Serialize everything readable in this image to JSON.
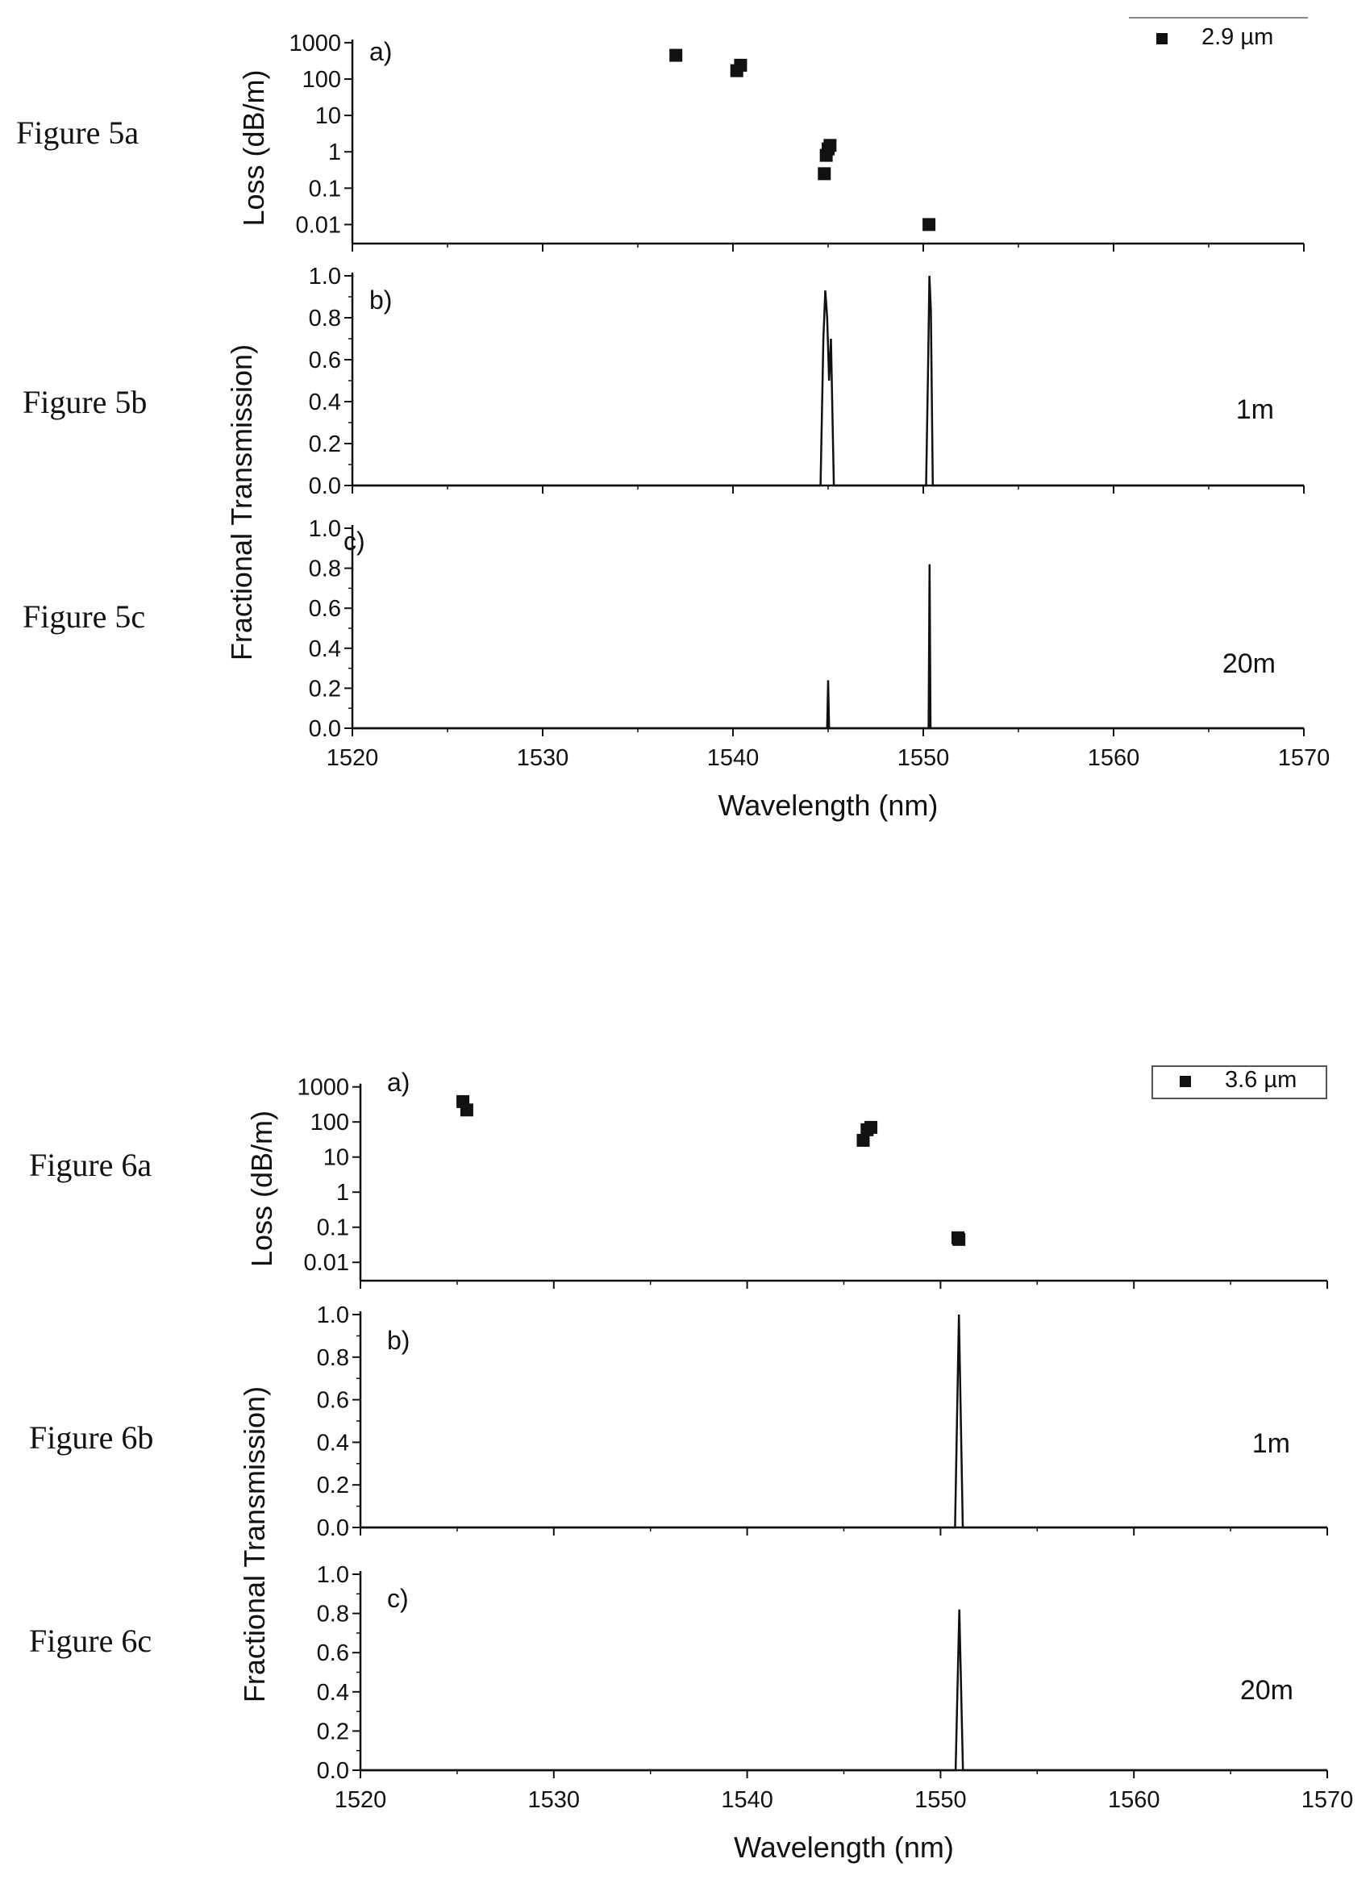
{
  "chart_data": [
    {
      "type": "scatter",
      "figure_label": "Figure 5a",
      "panel": "a)",
      "ylabel": "Loss (dB/m)",
      "yscale": "log",
      "ylim": [
        0.003,
        1500
      ],
      "xlim": [
        1520,
        1570
      ],
      "yticks": [
        0.01,
        0.1,
        1,
        10,
        100,
        1000
      ],
      "ytick_labels": [
        "0.01",
        "0.1",
        "1",
        "10",
        "100",
        "1000"
      ],
      "legend": {
        "label": "2.9 µm",
        "position": "top-right"
      },
      "series": [
        {
          "name": "2.9 µm",
          "marker": "square",
          "x": [
            1537.0,
            1540.2,
            1540.4,
            1544.8,
            1544.9,
            1545.0,
            1545.1,
            1550.3
          ],
          "y": [
            450,
            170,
            240,
            0.25,
            0.8,
            1.2,
            1.5,
            0.01
          ]
        }
      ]
    },
    {
      "type": "line",
      "figure_label": "Figure 5b",
      "panel": "b)",
      "annotation": "1m",
      "ylim": [
        0,
        1.0
      ],
      "xlim": [
        1520,
        1570
      ],
      "yticks": [
        0.0,
        0.2,
        0.4,
        0.6,
        0.8,
        1.0
      ],
      "ytick_labels": [
        "0.0",
        "0.2",
        "0.4",
        "0.6",
        "0.8",
        "1.0"
      ],
      "series": [
        {
          "x": [
            1520,
            1544.6,
            1544.75,
            1544.85,
            1544.95,
            1545.05,
            1545.15,
            1545.3,
            1550.15,
            1550.25,
            1550.32,
            1550.4,
            1550.5,
            1570
          ],
          "y": [
            0,
            0,
            0.7,
            0.93,
            0.8,
            0.5,
            0.7,
            0,
            0,
            0.55,
            1.0,
            0.84,
            0,
            0
          ]
        }
      ]
    },
    {
      "type": "line",
      "figure_label": "Figure 5c",
      "panel": "c)",
      "annotation": "20m",
      "ylim": [
        0,
        1.0
      ],
      "xlim": [
        1520,
        1570
      ],
      "yticks": [
        0.0,
        0.2,
        0.4,
        0.6,
        0.8,
        1.0
      ],
      "ytick_labels": [
        "0.0",
        "0.2",
        "0.4",
        "0.6",
        "0.8",
        "1.0"
      ],
      "xlabel": "Wavelength (nm)",
      "xticks": [
        1520,
        1530,
        1540,
        1550,
        1560,
        1570
      ],
      "xtick_labels": [
        "1520",
        "1530",
        "1540",
        "1550",
        "1560",
        "1570"
      ],
      "series": [
        {
          "x": [
            1520,
            1544.95,
            1545.0,
            1545.05,
            1550.28,
            1550.33,
            1550.38,
            1570
          ],
          "y": [
            0,
            0,
            0.24,
            0,
            0,
            0.82,
            0,
            0
          ]
        }
      ]
    },
    {
      "type": "scatter",
      "figure_label": "Figure 6a",
      "panel": "a)",
      "ylabel": "Loss (dB/m)",
      "yscale": "log",
      "ylim": [
        0.003,
        1500
      ],
      "xlim": [
        1520,
        1570
      ],
      "yticks": [
        0.01,
        0.1,
        1,
        10,
        100,
        1000
      ],
      "ytick_labels": [
        "0.01",
        "0.1",
        "1",
        "10",
        "100",
        "1000"
      ],
      "legend": {
        "label": "3.6 µm",
        "position": "top-right"
      },
      "series": [
        {
          "name": "3.6 µm",
          "marker": "square",
          "x": [
            1525.3,
            1525.5,
            1546.0,
            1546.2,
            1546.4,
            1550.9,
            1550.95
          ],
          "y": [
            380,
            220,
            30,
            60,
            70,
            0.05,
            0.045
          ]
        }
      ]
    },
    {
      "type": "line",
      "figure_label": "Figure 6b",
      "panel": "b)",
      "annotation": "1m",
      "ylim": [
        0,
        1.0
      ],
      "xlim": [
        1520,
        1570
      ],
      "yticks": [
        0.0,
        0.2,
        0.4,
        0.6,
        0.8,
        1.0
      ],
      "ytick_labels": [
        "0.0",
        "0.2",
        "0.4",
        "0.6",
        "0.8",
        "1.0"
      ],
      "series": [
        {
          "x": [
            1520,
            1550.75,
            1550.95,
            1551.15,
            1570
          ],
          "y": [
            0,
            0,
            1.0,
            0,
            0
          ]
        }
      ]
    },
    {
      "type": "line",
      "figure_label": "Figure 6c",
      "panel": "c)",
      "annotation": "20m",
      "ylim": [
        0,
        1.0
      ],
      "xlim": [
        1520,
        1570
      ],
      "yticks": [
        0.0,
        0.2,
        0.4,
        0.6,
        0.8,
        1.0
      ],
      "ytick_labels": [
        "0.0",
        "0.2",
        "0.4",
        "0.6",
        "0.8",
        "1.0"
      ],
      "xlabel": "Wavelength (nm)",
      "xticks": [
        1520,
        1530,
        1540,
        1550,
        1560,
        1570
      ],
      "xtick_labels": [
        "1520",
        "1530",
        "1540",
        "1550",
        "1560",
        "1570"
      ],
      "series": [
        {
          "x": [
            1520,
            1550.78,
            1550.97,
            1551.16,
            1570
          ],
          "y": [
            0,
            0,
            0.82,
            0,
            0
          ]
        }
      ]
    }
  ],
  "shared_ylabels": [
    "Fractional Transmission)",
    "Fractional Transmission)"
  ]
}
